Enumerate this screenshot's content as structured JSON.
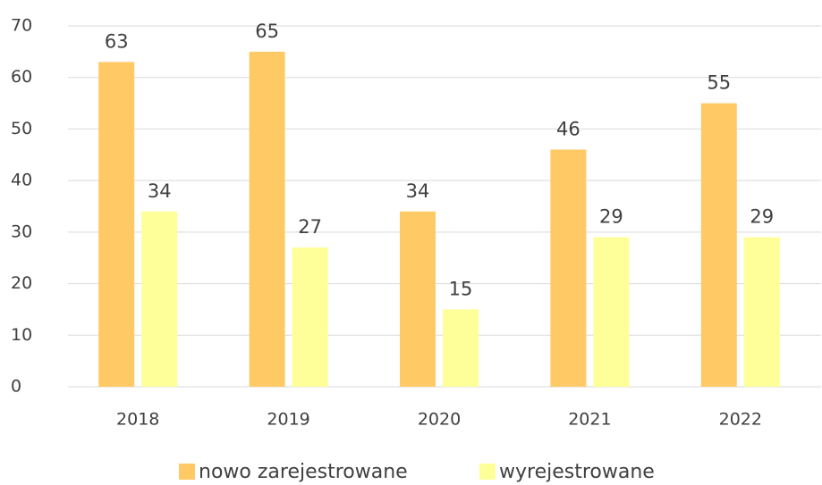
{
  "chart_data": {
    "type": "bar",
    "categories": [
      "2018",
      "2019",
      "2020",
      "2021",
      "2022"
    ],
    "series": [
      {
        "name": "nowo zarejestrowane",
        "color": "#ffc966",
        "values": [
          63,
          65,
          34,
          46,
          55
        ]
      },
      {
        "name": "wyrejestrowane",
        "color": "#ffff99",
        "values": [
          34,
          27,
          15,
          29,
          29
        ]
      }
    ],
    "ylim": [
      0,
      70
    ],
    "yticks": [
      0,
      10,
      20,
      30,
      40,
      50,
      60,
      70
    ],
    "grid": true,
    "legend": "bottom"
  }
}
